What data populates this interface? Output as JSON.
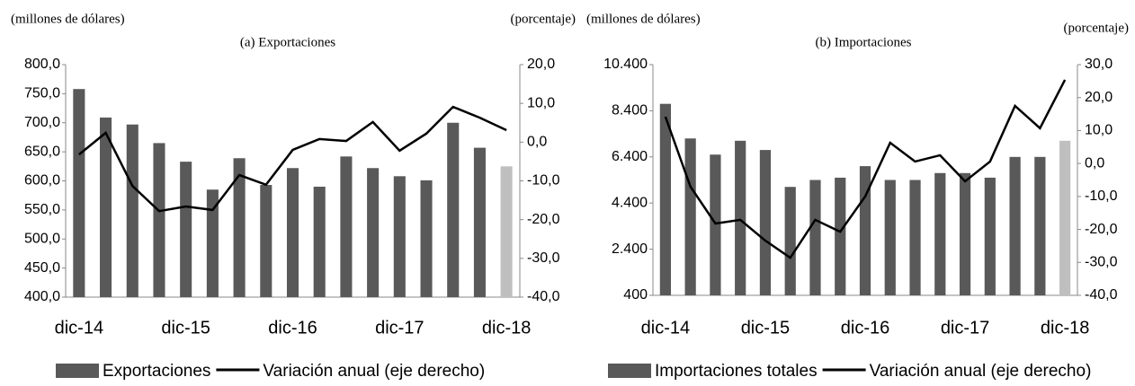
{
  "chart_data": [
    {
      "type": "combo",
      "title": "(a) Exportaciones",
      "y_label": "(millones de dólares)",
      "y2_label": "(porcentaje)",
      "categories": [
        "dic-14",
        null,
        null,
        null,
        "dic-15",
        null,
        null,
        null,
        "dic-16",
        null,
        null,
        null,
        "dic-17",
        null,
        null,
        null,
        "dic-18"
      ],
      "series": [
        {
          "name": "Exportaciones",
          "type": "bar",
          "axis": "y",
          "color": "#595959",
          "colors": [
            "#595959",
            "#595959",
            "#595959",
            "#595959",
            "#595959",
            "#595959",
            "#595959",
            "#595959",
            "#595959",
            "#595959",
            "#595959",
            "#595959",
            "#595959",
            "#595959",
            "#595959",
            "#595959",
            "#bfbfbf"
          ],
          "values": [
            758,
            709,
            697,
            665,
            633,
            585,
            639,
            593,
            622,
            590,
            642,
            622,
            608,
            601,
            700,
            657,
            625
          ]
        },
        {
          "name": "Variación anual (eje derecho)",
          "type": "line",
          "axis": "y2",
          "color": "#000000",
          "values": [
            -3.2,
            2.4,
            -11.3,
            -17.8,
            -16.6,
            -17.5,
            -8.5,
            -11.0,
            -2.0,
            0.8,
            0.3,
            5.2,
            -2.2,
            2.2,
            9.1,
            6.3,
            3.1
          ]
        }
      ],
      "ylim": [
        400,
        800
      ],
      "yticks": [
        {
          "value": 400,
          "label": "400,0"
        },
        {
          "value": 450,
          "label": "450,0"
        },
        {
          "value": 500,
          "label": "500,0"
        },
        {
          "value": 550,
          "label": "550,0"
        },
        {
          "value": 600,
          "label": "600,0"
        },
        {
          "value": 650,
          "label": "650,0"
        },
        {
          "value": 700,
          "label": "700,0"
        },
        {
          "value": 750,
          "label": "750,0"
        },
        {
          "value": 800,
          "label": "800,0"
        }
      ],
      "y2lim": [
        -40,
        20
      ],
      "y2ticks": [
        {
          "value": -40,
          "label": "-40,0"
        },
        {
          "value": -30,
          "label": "-30,0"
        },
        {
          "value": -20,
          "label": "-20,0"
        },
        {
          "value": -10,
          "label": "-10,0"
        },
        {
          "value": 0,
          "label": "0,0"
        },
        {
          "value": 10,
          "label": "10,0"
        },
        {
          "value": 20,
          "label": "20,0"
        }
      ]
    },
    {
      "type": "combo",
      "title": "(b) Importaciones",
      "y_label": "(millones de dólares)",
      "y2_label": "(porcentaje)",
      "categories": [
        "dic-14",
        null,
        null,
        null,
        "dic-15",
        null,
        null,
        null,
        "dic-16",
        null,
        null,
        null,
        "dic-17",
        null,
        null,
        null,
        "dic-18"
      ],
      "series": [
        {
          "name": "Importaciones totales",
          "type": "bar",
          "axis": "y",
          "color": "#595959",
          "colors": [
            "#595959",
            "#595959",
            "#595959",
            "#595959",
            "#595959",
            "#595959",
            "#595959",
            "#595959",
            "#595959",
            "#595959",
            "#595959",
            "#595959",
            "#595959",
            "#595959",
            "#595959",
            "#595959",
            "#bfbfbf"
          ],
          "values": [
            8700,
            7200,
            6500,
            7100,
            6700,
            5100,
            5400,
            5500,
            6000,
            5400,
            5400,
            5700,
            5700,
            5500,
            6400,
            6400,
            7100
          ]
        },
        {
          "name": "Variación anual (eje derecho)",
          "type": "line",
          "axis": "y2",
          "color": "#000000",
          "values": [
            14.2,
            -7.0,
            -18.2,
            -17.1,
            -23.4,
            -28.6,
            -17.1,
            -20.7,
            -10.0,
            6.3,
            0.6,
            2.5,
            -5.4,
            0.6,
            17.5,
            10.7,
            25.4
          ]
        }
      ],
      "ylim": [
        400,
        10400
      ],
      "yticks": [
        {
          "value": 400,
          "label": "400"
        },
        {
          "value": 2400,
          "label": "2.400"
        },
        {
          "value": 4400,
          "label": "4.400"
        },
        {
          "value": 6400,
          "label": "6.400"
        },
        {
          "value": 8400,
          "label": "8.400"
        },
        {
          "value": 10400,
          "label": "10.400"
        }
      ],
      "y2lim": [
        -40,
        30
      ],
      "y2ticks": [
        {
          "value": -40,
          "label": "-40,0"
        },
        {
          "value": -30,
          "label": "-30,0"
        },
        {
          "value": -20,
          "label": "-20,0"
        },
        {
          "value": -10,
          "label": "-10,0"
        },
        {
          "value": 0,
          "label": "0,0"
        },
        {
          "value": 10,
          "label": "10,0"
        },
        {
          "value": 20,
          "label": "20,0"
        },
        {
          "value": 30,
          "label": "30,0"
        }
      ]
    }
  ]
}
